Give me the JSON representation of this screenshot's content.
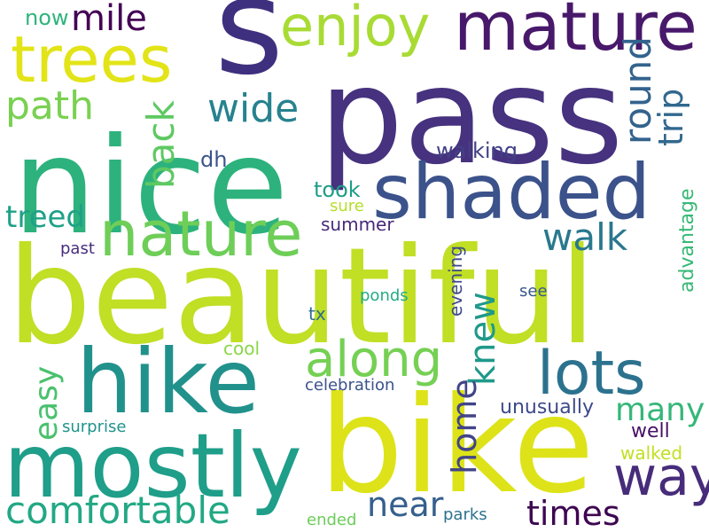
{
  "word_cloud": {
    "words": [
      {
        "text": "s",
        "color": "#3f2f7f"
      },
      {
        "text": "pass",
        "color": "#46327e"
      },
      {
        "text": "nice",
        "color": "#2db27d"
      },
      {
        "text": "beautiful",
        "color": "#c0df25"
      },
      {
        "text": "bike",
        "color": "#dde318"
      },
      {
        "text": "hike",
        "color": "#21918c"
      },
      {
        "text": "mostly",
        "color": "#1f9e89"
      },
      {
        "text": "shaded",
        "color": "#3b528b"
      },
      {
        "text": "mature",
        "color": "#48186a"
      },
      {
        "text": "trees",
        "color": "#e2e418"
      },
      {
        "text": "nature",
        "color": "#6ece58"
      },
      {
        "text": "enjoy",
        "color": "#a8db34"
      },
      {
        "text": "lots",
        "color": "#2c728e"
      },
      {
        "text": "along",
        "color": "#75d054"
      },
      {
        "text": "way",
        "color": "#472c7a"
      },
      {
        "text": "comfortable",
        "color": "#22a884"
      },
      {
        "text": "mile",
        "color": "#440154"
      },
      {
        "text": "path",
        "color": "#7ad151"
      },
      {
        "text": "wide",
        "color": "#26828e"
      },
      {
        "text": "back",
        "color": "#5ec962"
      },
      {
        "text": "round",
        "color": "#33638d"
      },
      {
        "text": "trip",
        "color": "#31688e"
      },
      {
        "text": "walk",
        "color": "#2a788e"
      },
      {
        "text": "treed",
        "color": "#1fa187"
      },
      {
        "text": "knew",
        "color": "#1f998a"
      },
      {
        "text": "easy",
        "color": "#4ac16d"
      },
      {
        "text": "home",
        "color": "#414487"
      },
      {
        "text": "many",
        "color": "#35b779"
      },
      {
        "text": "near",
        "color": "#355f8d"
      },
      {
        "text": "times",
        "color": "#3e0751"
      },
      {
        "text": "now",
        "color": "#2fb47c"
      },
      {
        "text": "walking",
        "color": "#424086"
      },
      {
        "text": "dh",
        "color": "#3a548c"
      },
      {
        "text": "took",
        "color": "#1e9d89"
      },
      {
        "text": "sure",
        "color": "#b5de2b"
      },
      {
        "text": "summer",
        "color": "#482878"
      },
      {
        "text": "past",
        "color": "#472d7b"
      },
      {
        "text": "evening",
        "color": "#3e4a89"
      },
      {
        "text": "advantage",
        "color": "#38b977"
      },
      {
        "text": "ponds",
        "color": "#25ab82"
      },
      {
        "text": "see",
        "color": "#38588c"
      },
      {
        "text": "tx",
        "color": "#2e6e8e"
      },
      {
        "text": "cool",
        "color": "#8bd646"
      },
      {
        "text": "celebration",
        "color": "#3b528b"
      },
      {
        "text": "unusually",
        "color": "#3e4989"
      },
      {
        "text": "surprise",
        "color": "#1f948c"
      },
      {
        "text": "well",
        "color": "#471164"
      },
      {
        "text": "walked",
        "color": "#c2df23"
      },
      {
        "text": "ended",
        "color": "#6ccd5a"
      },
      {
        "text": "parks",
        "color": "#2c718e"
      }
    ]
  }
}
